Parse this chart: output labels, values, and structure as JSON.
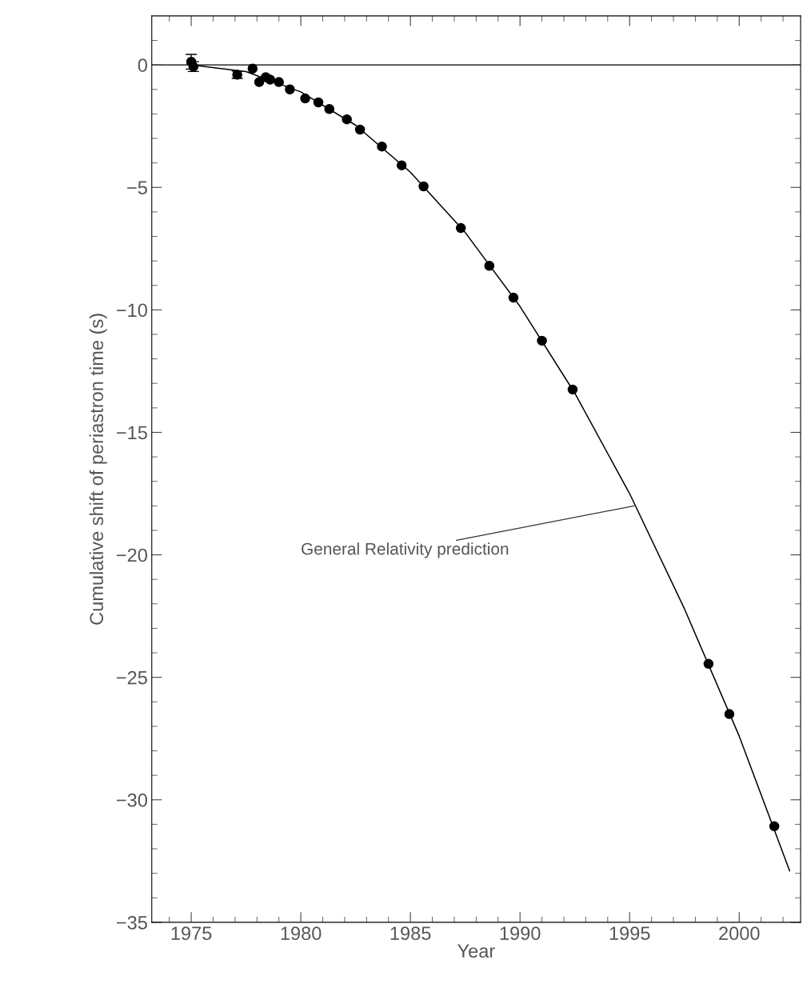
{
  "chart_data": {
    "type": "scatter",
    "xlabel": "Year",
    "ylabel": "Cumulative shift of periastron time (s)",
    "xlim": [
      1973.2,
      2002.8
    ],
    "ylim": [
      -35,
      2.0
    ],
    "xticks": [
      {
        "value": 1974,
        "label": null
      },
      1975,
      {
        "value": 1976,
        "label": null
      },
      {
        "value": 1977,
        "label": null
      },
      {
        "value": 1978,
        "label": null
      },
      {
        "value": 1979,
        "label": null
      },
      1980,
      {
        "value": 1981,
        "label": null
      },
      {
        "value": 1982,
        "label": null
      },
      {
        "value": 1983,
        "label": null
      },
      {
        "value": 1984,
        "label": null
      },
      1985,
      {
        "value": 1986,
        "label": null
      },
      {
        "value": 1987,
        "label": null
      },
      {
        "value": 1988,
        "label": null
      },
      {
        "value": 1989,
        "label": null
      },
      1990,
      {
        "value": 1991,
        "label": null
      },
      {
        "value": 1992,
        "label": null
      },
      {
        "value": 1993,
        "label": null
      },
      {
        "value": 1994,
        "label": null
      },
      1995,
      {
        "value": 1996,
        "label": null
      },
      {
        "value": 1997,
        "label": null
      },
      {
        "value": 1998,
        "label": null
      },
      {
        "value": 1999,
        "label": null
      },
      2000,
      {
        "value": 2001,
        "label": null
      },
      {
        "value": 2002,
        "label": null
      }
    ],
    "yticks": [
      {
        "value": 1,
        "label": null
      },
      0,
      {
        "value": -1,
        "label": null
      },
      {
        "value": -2,
        "label": null
      },
      {
        "value": -3,
        "label": null
      },
      {
        "value": -4,
        "label": null
      },
      -5,
      {
        "value": -6,
        "label": null
      },
      {
        "value": -7,
        "label": null
      },
      {
        "value": -8,
        "label": null
      },
      {
        "value": -9,
        "label": null
      },
      -10,
      {
        "value": -11,
        "label": null
      },
      {
        "value": -12,
        "label": null
      },
      {
        "value": -13,
        "label": null
      },
      {
        "value": -14,
        "label": null
      },
      -15,
      {
        "value": -16,
        "label": null
      },
      {
        "value": -17,
        "label": null
      },
      {
        "value": -18,
        "label": null
      },
      {
        "value": -19,
        "label": null
      },
      -20,
      {
        "value": -21,
        "label": null
      },
      {
        "value": -22,
        "label": null
      },
      {
        "value": -23,
        "label": null
      },
      {
        "value": -24,
        "label": null
      },
      -25,
      {
        "value": -26,
        "label": null
      },
      {
        "value": -27,
        "label": null
      },
      {
        "value": -28,
        "label": null
      },
      {
        "value": -29,
        "label": null
      },
      -30,
      {
        "value": -31,
        "label": null
      },
      {
        "value": -32,
        "label": null
      },
      {
        "value": -33,
        "label": null
      },
      {
        "value": -34,
        "label": null
      },
      -35
    ],
    "grid": false,
    "legend": false,
    "marker": "circle",
    "ref_lines": [
      {
        "axis": "y",
        "value": 0,
        "color": "#000000",
        "line_style": "solid"
      }
    ],
    "annotations": [
      {
        "text": "General Relativity prediction",
        "x": 1995.2,
        "y": -18.0
      }
    ],
    "series": [
      {
        "color": "#000000",
        "x": [
          1975.0,
          1975.1,
          1977.1,
          1977.8,
          1978.1,
          1978.4,
          1978.6,
          1979.0,
          1979.5,
          1980.2,
          1980.8,
          1981.3,
          1982.1,
          1982.7,
          1983.7,
          1984.6,
          1985.6,
          1987.3,
          1988.6,
          1989.7,
          1991.0,
          1992.4,
          1998.6,
          1999.55,
          2001.6
        ],
        "values": [
          0.13,
          -0.07,
          -0.4,
          -0.15,
          -0.7,
          -0.5,
          -0.6,
          -0.7,
          -1.0,
          -1.37,
          -1.53,
          -1.8,
          -2.22,
          -2.64,
          -3.33,
          -4.1,
          -4.96,
          -6.66,
          -8.2,
          -9.5,
          -11.26,
          -13.25,
          -24.45,
          -26.5,
          -31.08
        ],
        "errors": [
          0.3,
          0.2,
          0.15,
          null,
          null,
          null,
          null,
          null,
          null,
          null,
          null,
          null,
          null,
          null,
          null,
          null,
          null,
          null,
          null,
          null,
          null,
          null,
          null,
          null,
          null
        ]
      },
      {
        "type": "line",
        "color": "#000000",
        "marker": "none",
        "line_style": "solid",
        "x": [
          1975,
          1977.5,
          1980,
          1982.5,
          1985,
          1987.5,
          1990,
          1992.5,
          1995,
          1997.5,
          2000,
          2002.3
        ],
        "values": [
          0,
          -0.27,
          -1.1,
          -2.46,
          -4.38,
          -6.84,
          -9.86,
          -13.4,
          -17.5,
          -22.2,
          -27.4,
          -32.9
        ]
      }
    ]
  }
}
